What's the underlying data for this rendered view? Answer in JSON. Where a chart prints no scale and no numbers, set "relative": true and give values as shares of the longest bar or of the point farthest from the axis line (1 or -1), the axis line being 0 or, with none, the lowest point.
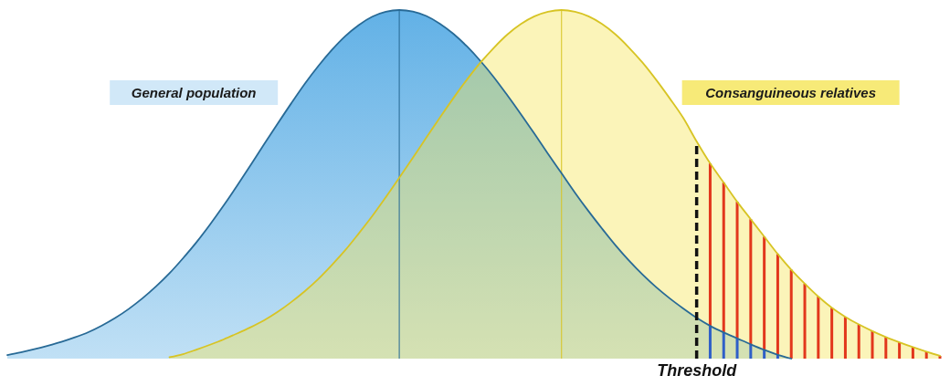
{
  "chart_data": {
    "type": "area",
    "relative": true,
    "categories": [
      null,
      null,
      null,
      null,
      null,
      null,
      null,
      null,
      null,
      null,
      null,
      null,
      null,
      null,
      null,
      null,
      null,
      null,
      null,
      null,
      null,
      null,
      null,
      null,
      null,
      null,
      null,
      null,
      null,
      null,
      null,
      null,
      null,
      null,
      null,
      null,
      null,
      null,
      null,
      null,
      null,
      null,
      null,
      null,
      null,
      null,
      null,
      null,
      null,
      null,
      null,
      null,
      null,
      null,
      null,
      null,
      null,
      null,
      null,
      null,
      null,
      null,
      null,
      null,
      null,
      null,
      null,
      null,
      null,
      null
    ],
    "series": [
      {
        "name": "General population",
        "color": "#62b1e6",
        "values": [
          0.01,
          0.018,
          0.027,
          0.037,
          0.048,
          0.061,
          0.076,
          0.095,
          0.117,
          0.143,
          0.173,
          0.207,
          0.245,
          0.288,
          0.334,
          0.385,
          0.439,
          0.496,
          0.555,
          0.615,
          0.674,
          0.732,
          0.788,
          0.839,
          0.885,
          0.925,
          0.957,
          0.981,
          0.995,
          1,
          0.996,
          0.983,
          0.961,
          0.932,
          0.896,
          0.854,
          0.807,
          0.755,
          0.701,
          0.645,
          0.588,
          0.532,
          0.476,
          0.423,
          0.373,
          0.325,
          0.281,
          0.241,
          0.205,
          0.173,
          0.144,
          0.117,
          0.094,
          0.075,
          0.058,
          0.041,
          0.025,
          0.011,
          0,
          null,
          null,
          null,
          null,
          null,
          null,
          null,
          null,
          null,
          null,
          null
        ]
      },
      {
        "name": "Consanguineous relatives",
        "color": "#fbf4b9",
        "values": [
          null,
          null,
          null,
          null,
          null,
          null,
          null,
          null,
          null,
          null,
          null,
          null,
          0.004,
          0.013,
          0.026,
          0.04,
          0.055,
          0.072,
          0.09,
          0.11,
          0.134,
          0.162,
          0.193,
          0.228,
          0.268,
          0.311,
          0.359,
          0.409,
          0.463,
          0.519,
          0.576,
          0.634,
          0.691,
          0.747,
          0.8,
          0.849,
          0.892,
          0.93,
          0.96,
          0.982,
          0.995,
          1,
          0.995,
          0.982,
          0.96,
          0.93,
          0.892,
          0.849,
          0.8,
          0.747,
          0.691,
          0.623,
          0.56,
          0.505,
          0.45,
          0.4,
          0.35,
          0.3,
          0.255,
          0.215,
          0.178,
          0.146,
          0.12,
          0.098,
          0.079,
          0.062,
          0.047,
          0.033,
          0.02,
          0.008
        ]
      }
    ],
    "annotations": [
      "Threshold"
    ]
  }
}
